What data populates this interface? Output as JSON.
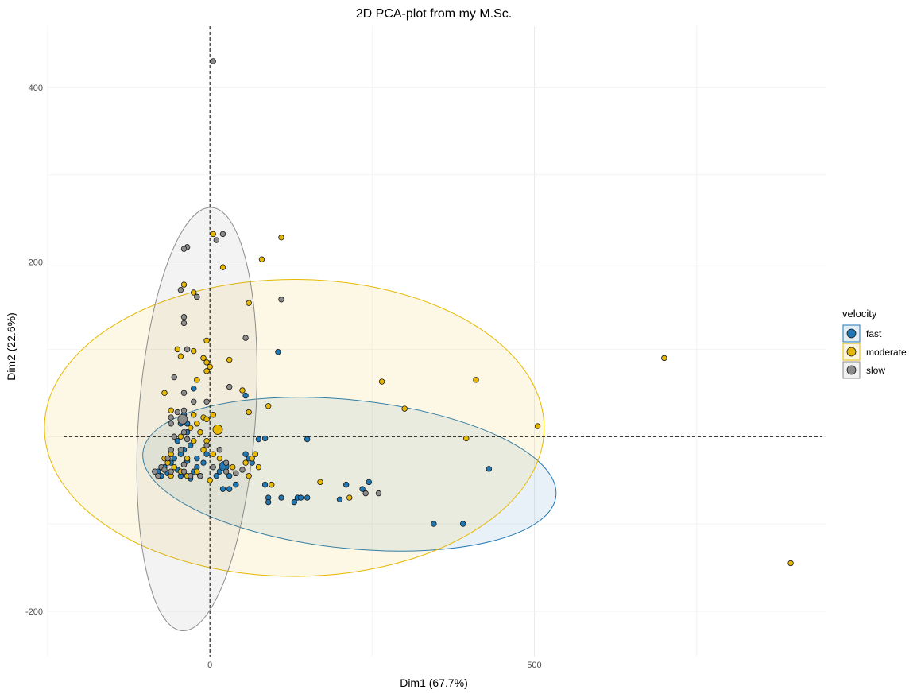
{
  "chart_data": {
    "type": "scatter",
    "title": "2D PCA-plot from my M.Sc.",
    "xlabel": "Dim1 (67.7%)",
    "ylabel": "Dim2 (22.6%)",
    "xlim": [
      -250,
      950
    ],
    "ylim": [
      -252,
      470
    ],
    "x_ticks": [
      0,
      500
    ],
    "y_ticks": [
      -200,
      200,
      400
    ],
    "grid": true,
    "reference_lines": {
      "x": 0,
      "y": 0,
      "style": "dashed"
    },
    "legend": {
      "title": "velocity",
      "placement": "right"
    },
    "series": [
      {
        "name": "fast",
        "color": "#1f77b4",
        "points": [
          [
            -80,
            -40
          ],
          [
            -75,
            -45
          ],
          [
            -70,
            -35
          ],
          [
            -65,
            -42
          ],
          [
            -60,
            -30
          ],
          [
            -55,
            -25
          ],
          [
            -50,
            -38
          ],
          [
            -45,
            -45
          ],
          [
            -40,
            -32
          ],
          [
            -35,
            -28
          ],
          [
            -30,
            -48
          ],
          [
            -25,
            -40
          ],
          [
            -20,
            -35
          ],
          [
            -15,
            -45
          ],
          [
            -10,
            -30
          ],
          [
            -5,
            -20
          ],
          [
            -40,
            -15
          ],
          [
            -30,
            -10
          ],
          [
            -50,
            -5
          ],
          [
            -35,
            5
          ],
          [
            -45,
            -20
          ],
          [
            -20,
            -25
          ],
          [
            -60,
            -15
          ],
          [
            -25,
            55
          ],
          [
            10,
            -45
          ],
          [
            15,
            -40
          ],
          [
            25,
            -35
          ],
          [
            30,
            -45
          ],
          [
            40,
            -55
          ],
          [
            20,
            -60
          ],
          [
            30,
            -60
          ],
          [
            55,
            -20
          ],
          [
            60,
            -25
          ],
          [
            65,
            -30
          ],
          [
            85,
            -55
          ],
          [
            90,
            -70
          ],
          [
            90,
            -75
          ],
          [
            110,
            -70
          ],
          [
            130,
            -75
          ],
          [
            135,
            -70
          ],
          [
            140,
            -70
          ],
          [
            150,
            -70
          ],
          [
            200,
            -72
          ],
          [
            235,
            -60
          ],
          [
            245,
            -52
          ],
          [
            210,
            -55
          ],
          [
            75,
            -3
          ],
          [
            85,
            -2
          ],
          [
            150,
            -3
          ],
          [
            345,
            -100
          ],
          [
            390,
            -100
          ],
          [
            430,
            -37
          ],
          [
            105,
            97
          ],
          [
            55,
            47
          ],
          [
            -35,
            15
          ],
          [
            -40,
            25
          ],
          [
            -45,
            15
          ],
          [
            -15,
            -45
          ]
        ],
        "centroid": [
          22,
          -34
        ],
        "ellipse": {
          "cx": 215,
          "cy": -43,
          "rx": 320,
          "ry": 85,
          "rotation_deg": 6
        }
      },
      {
        "name": "moderate",
        "color": "#e7b800",
        "points": [
          [
            5,
            232
          ],
          [
            110,
            228
          ],
          [
            80,
            203
          ],
          [
            20,
            194
          ],
          [
            -40,
            174
          ],
          [
            -25,
            165
          ],
          [
            -20,
            160
          ],
          [
            60,
            153
          ],
          [
            -5,
            110
          ],
          [
            -50,
            100
          ],
          [
            -25,
            98
          ],
          [
            -45,
            92
          ],
          [
            -10,
            90
          ],
          [
            30,
            88
          ],
          [
            -5,
            85
          ],
          [
            0,
            80
          ],
          [
            -5,
            75
          ],
          [
            -20,
            65
          ],
          [
            50,
            53
          ],
          [
            265,
            63
          ],
          [
            410,
            65
          ],
          [
            700,
            90
          ],
          [
            300,
            32
          ],
          [
            60,
            28
          ],
          [
            -25,
            25
          ],
          [
            -10,
            22
          ],
          [
            -20,
            15
          ],
          [
            -5,
            20
          ],
          [
            5,
            25
          ],
          [
            -30,
            10
          ],
          [
            -15,
            5
          ],
          [
            -45,
            0
          ],
          [
            -25,
            -5
          ],
          [
            -5,
            -5
          ],
          [
            -10,
            -15
          ],
          [
            5,
            -20
          ],
          [
            15,
            -25
          ],
          [
            35,
            -35
          ],
          [
            55,
            -30
          ],
          [
            75,
            -35
          ],
          [
            65,
            -25
          ],
          [
            70,
            -20
          ],
          [
            -35,
            -25
          ],
          [
            -55,
            -35
          ],
          [
            -65,
            -30
          ],
          [
            -70,
            -25
          ],
          [
            -20,
            -40
          ],
          [
            -35,
            -45
          ],
          [
            -45,
            -40
          ],
          [
            -60,
            -20
          ],
          [
            60,
            -45
          ],
          [
            95,
            -55
          ],
          [
            170,
            -52
          ],
          [
            215,
            -70
          ],
          [
            395,
            -2
          ],
          [
            505,
            12
          ],
          [
            895,
            -145
          ],
          [
            90,
            35
          ],
          [
            15,
            -15
          ],
          [
            -60,
            -45
          ],
          [
            0,
            -50
          ],
          [
            -60,
            30
          ],
          [
            -70,
            50
          ]
        ],
        "centroid": [
          12,
          8
        ],
        "ellipse": {
          "cx": 130,
          "cy": 10,
          "rx": 385,
          "ry": 170,
          "rotation_deg": 0
        }
      },
      {
        "name": "slow",
        "color": "#8c8c8c",
        "points": [
          [
            5,
            430
          ],
          [
            -35,
            217
          ],
          [
            -40,
            215
          ],
          [
            20,
            232
          ],
          [
            10,
            225
          ],
          [
            110,
            157
          ],
          [
            -45,
            168
          ],
          [
            -20,
            160
          ],
          [
            -40,
            137
          ],
          [
            55,
            113
          ],
          [
            -40,
            130
          ],
          [
            -35,
            100
          ],
          [
            -55,
            68
          ],
          [
            30,
            57
          ],
          [
            -40,
            50
          ],
          [
            -5,
            40
          ],
          [
            -25,
            40
          ],
          [
            -40,
            30
          ],
          [
            -50,
            28
          ],
          [
            -60,
            22
          ],
          [
            -45,
            20
          ],
          [
            -60,
            15
          ],
          [
            -40,
            5
          ],
          [
            -55,
            0
          ],
          [
            -35,
            -3
          ],
          [
            -5,
            -10
          ],
          [
            -45,
            -15
          ],
          [
            -60,
            -15
          ],
          [
            -65,
            -25
          ],
          [
            -75,
            -35
          ],
          [
            -85,
            -40
          ],
          [
            -80,
            -45
          ],
          [
            -60,
            -40
          ],
          [
            -40,
            -32
          ],
          [
            -40,
            -40
          ],
          [
            -30,
            -45
          ],
          [
            -15,
            -45
          ],
          [
            5,
            -35
          ],
          [
            25,
            -40
          ],
          [
            40,
            -42
          ],
          [
            50,
            -38
          ],
          [
            260,
            -65
          ],
          [
            240,
            -65
          ],
          [
            25,
            -30
          ],
          [
            -70,
            -38
          ],
          [
            15,
            -15
          ]
        ],
        "centroid": [
          -42,
          20
        ],
        "ellipse": {
          "cx": -20,
          "cy": 20,
          "rx": 90,
          "ry": 243,
          "rotation_deg": 4
        }
      }
    ]
  },
  "legend_items": [
    {
      "label": "fast",
      "color": "#1f77b4"
    },
    {
      "label": "moderate",
      "color": "#e7b800"
    },
    {
      "label": "slow",
      "color": "#8c8c8c"
    }
  ]
}
